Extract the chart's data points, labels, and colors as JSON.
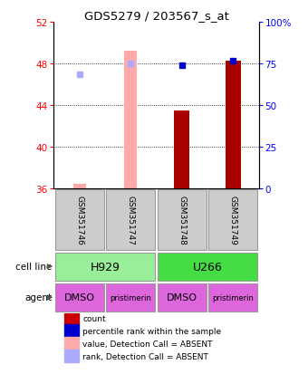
{
  "title": "GDS5279 / 203567_s_at",
  "samples": [
    "GSM351746",
    "GSM351747",
    "GSM351748",
    "GSM351749"
  ],
  "ylim_left": [
    36,
    52
  ],
  "ylim_right": [
    0,
    100
  ],
  "yticks_left": [
    36,
    40,
    44,
    48,
    52
  ],
  "yticks_right": [
    0,
    25,
    50,
    75,
    100
  ],
  "count_values": [
    null,
    null,
    43.5,
    48.3
  ],
  "count_color": "#aa0000",
  "percentile_values": [
    null,
    null,
    47.85,
    48.3
  ],
  "percentile_color": "#0000cc",
  "absent_count": [
    36.5,
    49.2,
    null,
    null
  ],
  "absent_count_color": "#ffaaaa",
  "absent_rank": [
    47.0,
    48.0,
    null,
    null
  ],
  "absent_rank_color": "#aaaaff",
  "cell_lines": [
    [
      "H929",
      0,
      2
    ],
    [
      "U266",
      2,
      4
    ]
  ],
  "cell_line_colors": [
    "#99ee99",
    "#44dd44"
  ],
  "agents": [
    "DMSO",
    "pristimerin",
    "DMSO",
    "pristimerin"
  ],
  "agent_color": "#dd66dd",
  "legend_items": [
    {
      "label": "count",
      "color": "#cc0000"
    },
    {
      "label": "percentile rank within the sample",
      "color": "#0000cc"
    },
    {
      "label": "value, Detection Call = ABSENT",
      "color": "#ffaaaa"
    },
    {
      "label": "rank, Detection Call = ABSENT",
      "color": "#aaaaff"
    }
  ],
  "bar_width": 0.3
}
